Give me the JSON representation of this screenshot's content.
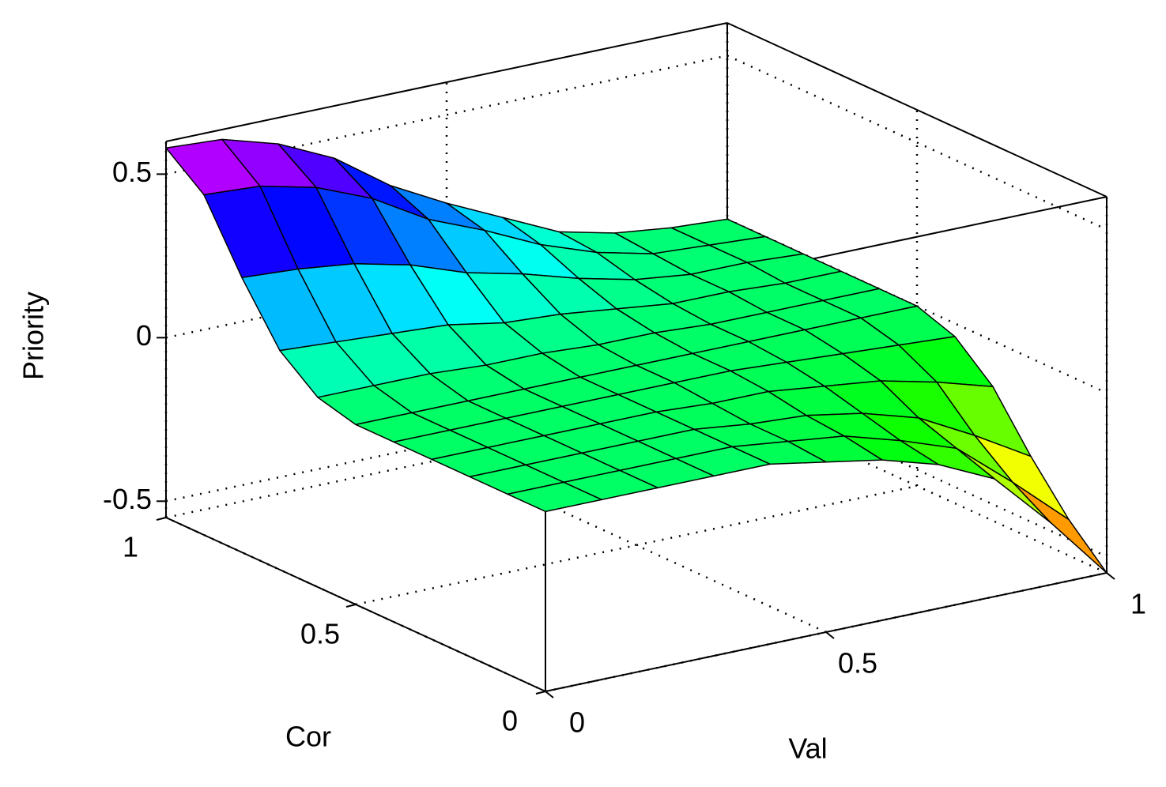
{
  "chart_data": {
    "type": "surface",
    "x_label": "Val",
    "y_label": "Cor",
    "z_label": "Priority",
    "x": [
      0,
      0.1,
      0.2,
      0.3,
      0.4,
      0.5,
      0.6,
      0.7,
      0.8,
      0.9,
      1
    ],
    "y": [
      0,
      0.1,
      0.2,
      0.3,
      0.4,
      0.5,
      0.6,
      0.7,
      0.8,
      0.9,
      1
    ],
    "z": [
      [
        0,
        0,
        0,
        0,
        0,
        -0.03,
        -0.06,
        -0.11,
        -0.19,
        -0.36,
        -0.55
      ],
      [
        0,
        0,
        0,
        0,
        0,
        -0.02,
        -0.04,
        -0.09,
        -0.15,
        -0.29,
        -0.44
      ],
      [
        0,
        0,
        0,
        0,
        0,
        -0.02,
        -0.03,
        -0.06,
        -0.11,
        -0.2,
        -0.3
      ],
      [
        0,
        0,
        0,
        0,
        0,
        -0.01,
        -0.01,
        -0.03,
        -0.05,
        -0.09,
        -0.14
      ],
      [
        0,
        0,
        0,
        0,
        0,
        0,
        0,
        -0.01,
        -0.02,
        -0.03,
        -0.04
      ],
      [
        0,
        0,
        0,
        0,
        0,
        0,
        0,
        0,
        0,
        0,
        0
      ],
      [
        0.03,
        0.03,
        0.03,
        0.02,
        0.02,
        0.01,
        0.01,
        0,
        0,
        0,
        0
      ],
      [
        0.12,
        0.11,
        0.1,
        0.09,
        0.06,
        0.05,
        0.03,
        0.01,
        0.01,
        0,
        0
      ],
      [
        0.29,
        0.28,
        0.26,
        0.22,
        0.16,
        0.12,
        0.07,
        0.03,
        0.01,
        0.01,
        0
      ],
      [
        0.49,
        0.48,
        0.44,
        0.37,
        0.27,
        0.2,
        0.12,
        0.06,
        0.02,
        0.01,
        0
      ],
      [
        0.58,
        0.57,
        0.52,
        0.44,
        0.32,
        0.23,
        0.15,
        0.07,
        0.03,
        0.01,
        0
      ]
    ],
    "xlim": [
      0,
      1
    ],
    "ylim": [
      0,
      1
    ],
    "zlim": [
      -0.55,
      0.6
    ],
    "xticks": [
      0,
      0.5,
      1
    ],
    "yticks": [
      0,
      0.5,
      1
    ],
    "zticks": [
      -0.5,
      0,
      0.5
    ],
    "grid": true,
    "colormap": "hsv",
    "edge_color": "#000000"
  }
}
